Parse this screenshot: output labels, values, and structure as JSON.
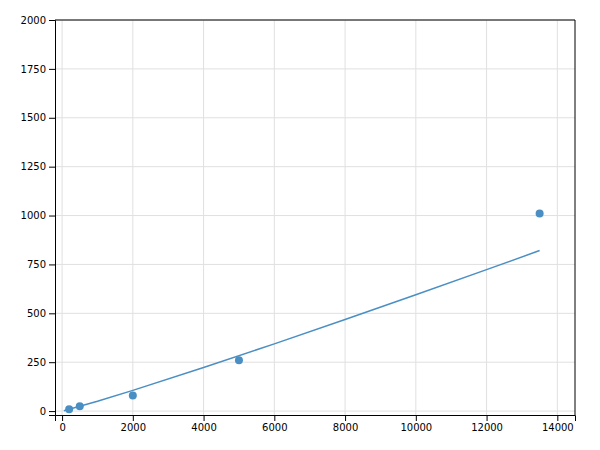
{
  "chart_data": {
    "type": "scatter",
    "series": [
      {
        "type": "line",
        "color": "#4a8fc4",
        "line_style": "solid",
        "x": [
          50,
          1000,
          2000,
          4000,
          6000,
          8000,
          10000,
          12000,
          13500
        ],
        "values": [
          2.02,
          50.29,
          105.8,
          222.58,
          343.89,
          468.24,
          594.91,
          723.45,
          820.9
        ]
      },
      {
        "type": "scatter",
        "color": "#4a8fc4",
        "marker": "circle",
        "x": [
          200,
          500,
          2000,
          5000,
          13500
        ],
        "values": [
          10,
          25,
          80,
          260,
          1010
        ]
      }
    ],
    "xlim": [
      -200,
      14500
    ],
    "ylim": [
      -20,
      2000
    ],
    "xticks": [
      0,
      2000,
      4000,
      6000,
      8000,
      10000,
      12000,
      14000
    ],
    "yticks": [
      0,
      250,
      500,
      750,
      1000,
      1250,
      1500,
      1750,
      2000
    ],
    "grid": true
  }
}
